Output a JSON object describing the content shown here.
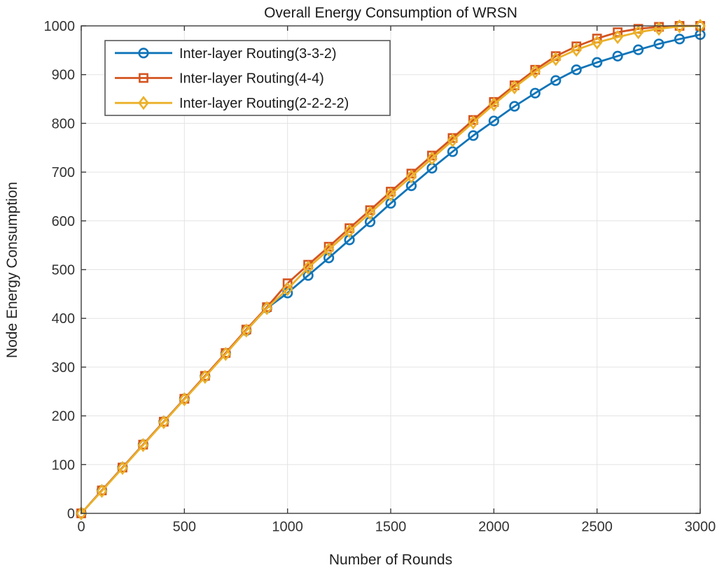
{
  "figure": {
    "title": "Overall Energy Consumption of WRSN",
    "xlabel": "Number of Rounds",
    "ylabel": "Node Energy Consumption"
  },
  "colors": {
    "series_blue": "#0f74b8",
    "series_red": "#d4541f",
    "series_yellow": "#ebb028",
    "grid": "#e3e3e3",
    "frame": "#3c3c3c",
    "background": "#ffffff",
    "legend_border": "#4d4d4d"
  },
  "chart_data": {
    "type": "line",
    "title": "Overall Energy Consumption of WRSN",
    "xlabel": "Number of Rounds",
    "ylabel": "Node Energy Consumption",
    "xlim": [
      0,
      3000
    ],
    "ylim": [
      0,
      1000
    ],
    "x_ticks": [
      0,
      500,
      1000,
      1500,
      2000,
      2500,
      3000
    ],
    "y_ticks": [
      0,
      100,
      200,
      300,
      400,
      500,
      600,
      700,
      800,
      900,
      1000
    ],
    "grid": true,
    "legend_position": "top-left",
    "x": [
      0,
      100,
      200,
      300,
      400,
      500,
      600,
      700,
      800,
      900,
      1000,
      1100,
      1200,
      1300,
      1400,
      1500,
      1600,
      1700,
      1800,
      1900,
      2000,
      2100,
      2200,
      2300,
      2400,
      2500,
      2600,
      2700,
      2800,
      2900,
      3000
    ],
    "series": [
      {
        "name": "Inter-layer Routing(3-3-2)",
        "color": "#0f74b8",
        "marker": "circle",
        "values": [
          0,
          47,
          94,
          141,
          188,
          235,
          281,
          328,
          375,
          421,
          452,
          488,
          524,
          561,
          598,
          636,
          672,
          708,
          742,
          775,
          805,
          835,
          862,
          888,
          910,
          925,
          938,
          951,
          963,
          973,
          982
        ]
      },
      {
        "name": "Inter-layer Routing(4-4)",
        "color": "#d4541f",
        "marker": "square",
        "values": [
          0,
          47,
          94,
          141,
          188,
          235,
          282,
          329,
          377,
          423,
          472,
          510,
          547,
          585,
          622,
          660,
          697,
          734,
          770,
          807,
          844,
          878,
          910,
          938,
          958,
          974,
          987,
          994,
          998,
          1000,
          1000
        ]
      },
      {
        "name": "Inter-layer Routing(2-2-2-2)",
        "color": "#ebb028",
        "marker": "diamond",
        "values": [
          0,
          46,
          93,
          140,
          187,
          234,
          280,
          327,
          375,
          421,
          460,
          504,
          541,
          579,
          616,
          654,
          691,
          728,
          765,
          802,
          839,
          874,
          906,
          932,
          951,
          966,
          977,
          987,
          994,
          999,
          1000
        ]
      }
    ]
  }
}
